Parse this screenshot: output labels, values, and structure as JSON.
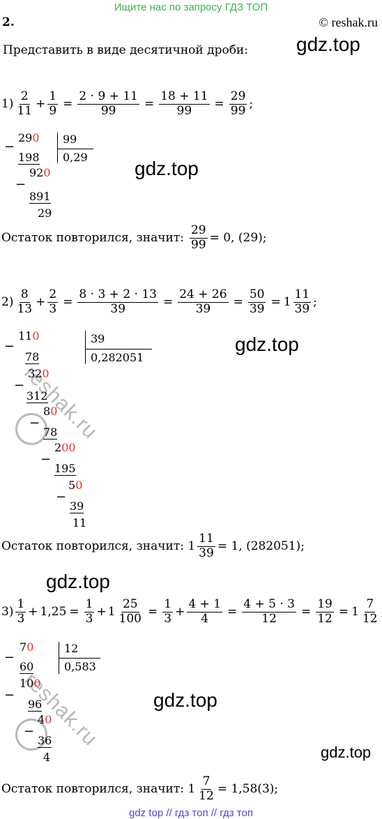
{
  "banner": "Ищите нас по запросу ГДЗ ТОП",
  "number": "2.",
  "site": "© reshak.ru",
  "intro": "Представить в виде десятичной дроби:",
  "watermark": "gdz.top",
  "stamp": "reshak.ru",
  "p1": {
    "label": "1)",
    "f1n": "2",
    "f1d": "11",
    "plus": "+",
    "f2n": "1",
    "f2d": "9",
    "eq": "=",
    "f3n": "2 · 9 + 11",
    "f3d": "99",
    "f4n": "18 + 11",
    "f4d": "99",
    "f5n": "29",
    "f5d": "99",
    "end": ";",
    "div": {
      "r1a": "29",
      "r1b": "0",
      "divisor": "99",
      "quot": "0,29",
      "s1": "198",
      "r2a": "92",
      "r2b": "0",
      "s2": "891",
      "rem": "29"
    },
    "concl": "Остаток повторился, значит:",
    "cfn": "29",
    "cfd": "99",
    "cres": "= 0, (29);"
  },
  "p2": {
    "label": "2)",
    "f1n": "8",
    "f1d": "13",
    "plus": "+",
    "f2n": "2",
    "f2d": "3",
    "eq": "=",
    "f3n": "8 · 3 + 2 · 13",
    "f3d": "39",
    "f4n": "24 + 26",
    "f4d": "39",
    "f5n": "50",
    "f5d": "39",
    "mixw": "1",
    "mixn": "11",
    "mixd": "39",
    "end": ";",
    "div": {
      "r1a": "11",
      "r1b": "0",
      "divisor": "39",
      "quot": "0,282051",
      "s1": "78",
      "r2a": "32",
      "r2b": "0",
      "s2": "312",
      "r3a": "8",
      "r3b": "0",
      "s3": "78",
      "r4a": "2",
      "r4b": "00",
      "s4": "195",
      "r5a": "5",
      "r5b": "0",
      "s5": "39",
      "rem": "11"
    },
    "concl": "Остаток повторился, значит: 1",
    "cfn": "11",
    "cfd": "39",
    "cres": "= 1, (282051);"
  },
  "p3": {
    "label": "3)",
    "f1n": "1",
    "f1d": "3",
    "plus": "+",
    "dec": "1,25",
    "eq": "=",
    "f2n": "1",
    "f2d": "3",
    "mixw": "1",
    "mixn": "25",
    "mixd": "100",
    "f3n": "1",
    "f3d": "3",
    "f4n": "4 + 1",
    "f4d": "4",
    "f5n": "4 + 5 · 3",
    "f5d": "12",
    "f6n": "19",
    "f6d": "12",
    "mix2w": "1",
    "mix2n": "7",
    "mix2d": "12",
    "end": ";",
    "div": {
      "r1a": "7",
      "r1b": "0",
      "divisor": "12",
      "quot": "0,583",
      "s1": "60",
      "r2a": "10",
      "r2b": "0",
      "s2": "96",
      "r3a": "4",
      "r3b": "0",
      "s3": "36",
      "rem": "4"
    },
    "concl": "Остаток повторился, значит: 1",
    "cfn": "7",
    "cfd": "12",
    "cres": "= 1,58(3);"
  },
  "footer": "gdz top  //  гдз топ  //  гдз топ"
}
